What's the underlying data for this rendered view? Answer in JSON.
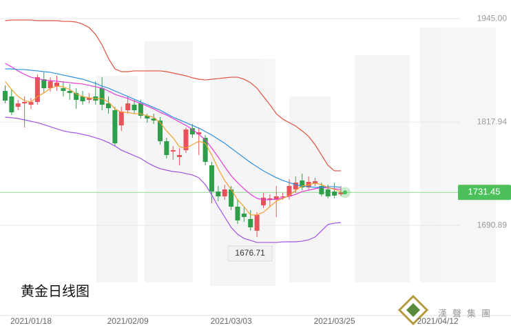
{
  "chart_data": {
    "type": "candlestick",
    "title": "黄金日线图",
    "logo_text": "漢聲集團",
    "up_color": "#e8525b",
    "down_color": "#2e9e4a",
    "ylim": [
      1582.6,
      1968
    ],
    "yticks": [
      {
        "value": 1945,
        "label": "1945.00"
      },
      1817.94,
      1690.89
    ],
    "grid": true,
    "last_price": 1731.45,
    "last_price_color": "#4cc05a",
    "low_marker": 1676.71,
    "categories": [
      null,
      null,
      null,
      null,
      "2021/01/18",
      null,
      null,
      null,
      null,
      null,
      null,
      null,
      null,
      null,
      null,
      null,
      null,
      null,
      null,
      "2021/02/09",
      null,
      null,
      null,
      null,
      null,
      null,
      null,
      null,
      null,
      null,
      null,
      null,
      null,
      null,
      null,
      "2021/03/03",
      null,
      null,
      null,
      null,
      null,
      null,
      null,
      null,
      null,
      null,
      null,
      null,
      null,
      null,
      null,
      "2021/03/25",
      null,
      null,
      null,
      null,
      null,
      null,
      null,
      null,
      null,
      null,
      null,
      null,
      null,
      null,
      null,
      "2021/04/12",
      null,
      null,
      null,
      null,
      null,
      null,
      null,
      null,
      null,
      null,
      null
    ],
    "open": [
      1856.2,
      1849.4,
      1836.7,
      1840.9,
      1839.3,
      1842.6,
      1870.6,
      1859.6,
      1862.1,
      1859.6,
      1856.2,
      1853.7,
      1849.4,
      1845.2,
      1849.4,
      1859.6,
      1840.9,
      1832.5,
      1813.8,
      1832.5,
      1839.3,
      1840.9,
      1825.7,
      1822.3,
      1819.8,
      1794.4,
      1781.7,
      1774.9,
      1783.4,
      1810.5,
      1802.8,
      1798.6,
      1764.7,
      1732.5,
      1726.6,
      1735.1,
      1713.9,
      1705.4,
      1698.7,
      1684.3,
      1715.6,
      1722.4,
      1722.4,
      1725.8,
      1726.6,
      1735.1,
      1746.1,
      1737.6,
      1742.7,
      1739.3,
      1735.1,
      1732.5,
      1729.1,
      null,
      null,
      null,
      null,
      null,
      null,
      null,
      null,
      null,
      null,
      null,
      null,
      null,
      null,
      null,
      null,
      null,
      null,
      null,
      null,
      null,
      null,
      null,
      null,
      null,
      null
    ],
    "high": [
      1863.0,
      1857.9,
      1845.2,
      1849.4,
      1847.7,
      1876.5,
      1879.1,
      1873.1,
      1874.8,
      1868.1,
      1864.7,
      1859.6,
      1856.2,
      1853.7,
      1868.1,
      1873.1,
      1849.4,
      1836.7,
      1836.7,
      1849.4,
      1845.2,
      1845.2,
      1828.2,
      1828.2,
      1824.0,
      1798.6,
      1788.4,
      1785.9,
      1811.3,
      1815.5,
      1811.3,
      1802.0,
      1769.0,
      1739.3,
      1741.0,
      1739.3,
      1722.4,
      1713.9,
      1709.7,
      1707.1,
      1730.8,
      1729.1,
      1739.3,
      1730.8,
      1747.8,
      1751.0,
      1754.6,
      1751.0,
      1749.5,
      1743.5,
      1741.0,
      1743.5,
      1739.3,
      null,
      null,
      null,
      null,
      null,
      null,
      null,
      null,
      null,
      null,
      null,
      null,
      null,
      null,
      null,
      null,
      null,
      null,
      null,
      null,
      null,
      null,
      null,
      null,
      null,
      null
    ],
    "low": [
      1840.9,
      1826.6,
      1832.5,
      1811.3,
      1834.2,
      1839.3,
      1853.7,
      1855.3,
      1856.2,
      1849.4,
      1845.2,
      1834.2,
      1839.3,
      1840.9,
      1839.3,
      1832.5,
      1828.2,
      1788.4,
      1807.1,
      1828.2,
      1828.2,
      1822.3,
      1817.2,
      1815.5,
      1790.1,
      1773.2,
      1771.5,
      1764.7,
      1780.0,
      1798.6,
      1777.4,
      1764.7,
      1718.1,
      1720.7,
      1722.4,
      1709.7,
      1692.7,
      1695.3,
      1684.3,
      1676.71,
      1712.2,
      1713.9,
      1701.2,
      1722.4,
      1722.4,
      1730.8,
      1734.2,
      1735.1,
      1739.3,
      1726.6,
      1724.1,
      1724.1,
      1726.6,
      null,
      null,
      null,
      null,
      null,
      null,
      null,
      null,
      null,
      null,
      null,
      null,
      null,
      null,
      null,
      null,
      null,
      null,
      null,
      null,
      null,
      null,
      null,
      null,
      null,
      null
    ],
    "close": [
      1844.3,
      1829.9,
      1840.9,
      1842.6,
      1842.6,
      1873.1,
      1859.6,
      1868.1,
      1866.4,
      1856.2,
      1853.7,
      1845.2,
      1843.5,
      1847.7,
      1844.3,
      1839.3,
      1835.0,
      1791.8,
      1830.8,
      1840.9,
      1832.5,
      1825.7,
      1822.3,
      1819.8,
      1794.4,
      1777.4,
      1783.4,
      1777.4,
      1808.8,
      1802.8,
      1805.4,
      1769.0,
      1732.5,
      1726.6,
      1735.1,
      1713.9,
      1697.0,
      1701.2,
      1688.5,
      1703.7,
      1724.9,
      1724.1,
      1726.6,
      1726.6,
      1739.3,
      1743.5,
      1737.6,
      1744.4,
      1745.2,
      1729.1,
      1726.6,
      1727.5,
      1731.45,
      null,
      null,
      null,
      null,
      null,
      null,
      null,
      null,
      null,
      null,
      null,
      null,
      null,
      null,
      null,
      null,
      null,
      null,
      null,
      null,
      null,
      null,
      null,
      null,
      null,
      null
    ],
    "series": [
      {
        "color": "#e0503c",
        "values": [
          1942.6,
          1943.4,
          1943.4,
          1943.4,
          1943.4,
          1942.6,
          1942.6,
          1942.6,
          1942.6,
          1941.7,
          1941.7,
          1940.9,
          1938.4,
          1934.1,
          1925.7,
          1912.9,
          1896.0,
          1883.3,
          1879.9,
          1879.9,
          1880.8,
          1880.8,
          1880.8,
          1880.8,
          1880.8,
          1879.9,
          1878.2,
          1876.5,
          1874.8,
          1872.3,
          1870.6,
          1869.7,
          1870.6,
          1871.4,
          1872.3,
          1873.1,
          1873.1,
          1870.6,
          1866.4,
          1859.6,
          1849.4,
          1839.3,
          1828.2,
          1821.5,
          1817.2,
          1813.0,
          1807.1,
          1800.3,
          1790.1,
          1777.4,
          1764.7,
          1758.0,
          1758.0,
          null,
          null,
          null,
          null,
          null,
          null,
          null,
          null,
          null,
          null,
          null,
          null,
          null,
          null,
          null,
          null,
          null,
          null,
          null,
          null,
          null,
          null,
          null,
          null,
          null,
          null
        ]
      },
      {
        "color": "#e83ad8",
        "values": [
          1890.1,
          1885.8,
          1880.8,
          1876.5,
          1873.1,
          1871.4,
          1869.7,
          1868.9,
          1868.1,
          1867.2,
          1866.4,
          1865.5,
          1864.7,
          1863.0,
          1861.3,
          1859.6,
          1856.2,
          1852.0,
          1849.4,
          1846.9,
          1843.5,
          1840.9,
          1837.6,
          1834.2,
          1829.9,
          1826.6,
          1822.3,
          1818.1,
          1813.8,
          1808.8,
          1802.8,
          1796.1,
          1785.9,
          1774.9,
          1763.0,
          1752.0,
          1743.5,
          1735.9,
          1729.1,
          1724.1,
          1722.4,
          1722.4,
          1723.2,
          1724.9,
          1726.6,
          1729.1,
          1732.5,
          1734.2,
          1735.9,
          1737.6,
          1736.8,
          1735.9,
          1735.1,
          null,
          null,
          null,
          null,
          null,
          null,
          null,
          null,
          null,
          null,
          null,
          null,
          null,
          null,
          null,
          null,
          null,
          null,
          null,
          null,
          null,
          null,
          null,
          null,
          null,
          null
        ]
      },
      {
        "color": "#2c8fe0",
        "values": [
          1883.3,
          1883.3,
          1882.5,
          1882.5,
          1881.6,
          1880.8,
          1879.9,
          1879.1,
          1877.4,
          1875.7,
          1874.0,
          1872.3,
          1870.6,
          1868.1,
          1865.5,
          1862.1,
          1859.6,
          1856.2,
          1852.8,
          1849.4,
          1846.0,
          1842.6,
          1839.3,
          1835.9,
          1832.5,
          1828.2,
          1824.0,
          1820.6,
          1817.2,
          1813.8,
          1810.5,
          1806.2,
          1802.0,
          1796.9,
          1791.8,
          1785.9,
          1780.0,
          1774.0,
          1768.1,
          1763.0,
          1757.9,
          1753.7,
          1749.5,
          1746.1,
          1743.5,
          1741.0,
          1739.3,
          1738.5,
          1737.6,
          1737.6,
          1738.5,
          1738.5,
          1737.6,
          null,
          null,
          null,
          null,
          null,
          null,
          null,
          null,
          null,
          null,
          null,
          null,
          null,
          null,
          null,
          null,
          null,
          null,
          null,
          null,
          null,
          null,
          null,
          null,
          null,
          null
        ]
      },
      {
        "color": "#a050e8",
        "values": [
          1824.0,
          1823.2,
          1822.3,
          1820.6,
          1818.9,
          1817.2,
          1814.7,
          1812.2,
          1809.6,
          1807.1,
          1805.4,
          1804.5,
          1802.8,
          1801.1,
          1798.6,
          1796.1,
          1792.7,
          1788.4,
          1783.4,
          1780.0,
          1776.6,
          1773.2,
          1768.1,
          1763.9,
          1760.5,
          1758.8,
          1757.1,
          1756.3,
          1754.6,
          1752.9,
          1749.5,
          1741.0,
          1728.3,
          1713.9,
          1701.2,
          1688.5,
          1680.0,
          1674.9,
          1672.4,
          1669.9,
          1669.9,
          1669.9,
          1669.9,
          1670.7,
          1670.7,
          1670.7,
          1671.5,
          1673.2,
          1676.6,
          1684.3,
          1691.9,
          1693.6,
          1694.4,
          null,
          null,
          null,
          null,
          null,
          null,
          null,
          null,
          null,
          null,
          null,
          null,
          null,
          null,
          null,
          null,
          null,
          null,
          null,
          null,
          null,
          null,
          null,
          null,
          null,
          null
        ]
      },
      {
        "color": "#f0a030",
        "values": [
          1868.1,
          1857.9,
          1849.4,
          1844.3,
          1842.6,
          1849.4,
          1853.7,
          1859.6,
          1862.1,
          1861.3,
          1857.9,
          1852.8,
          1849.4,
          1847.7,
          1846.9,
          1846.9,
          1842.6,
          1834.2,
          1829.9,
          1829.9,
          1828.2,
          1828.2,
          1825.7,
          1824.0,
          1817.2,
          1807.1,
          1798.6,
          1787.6,
          1785.9,
          1790.1,
          1794.4,
          1791.8,
          1777.4,
          1760.5,
          1746.1,
          1735.1,
          1722.4,
          1713.9,
          1703.7,
          1703.7,
          1707.1,
          1713.9,
          1720.7,
          1724.1,
          1727.5,
          1734.2,
          1739.3,
          1741.0,
          1742.7,
          1741.0,
          1737.6,
          1735.1,
          1732.5,
          null,
          null,
          null,
          null,
          null,
          null,
          null,
          null,
          null,
          null,
          null,
          null,
          null,
          null,
          null,
          null,
          null,
          null,
          null,
          null,
          null,
          null,
          null,
          null,
          null,
          null
        ]
      }
    ]
  }
}
